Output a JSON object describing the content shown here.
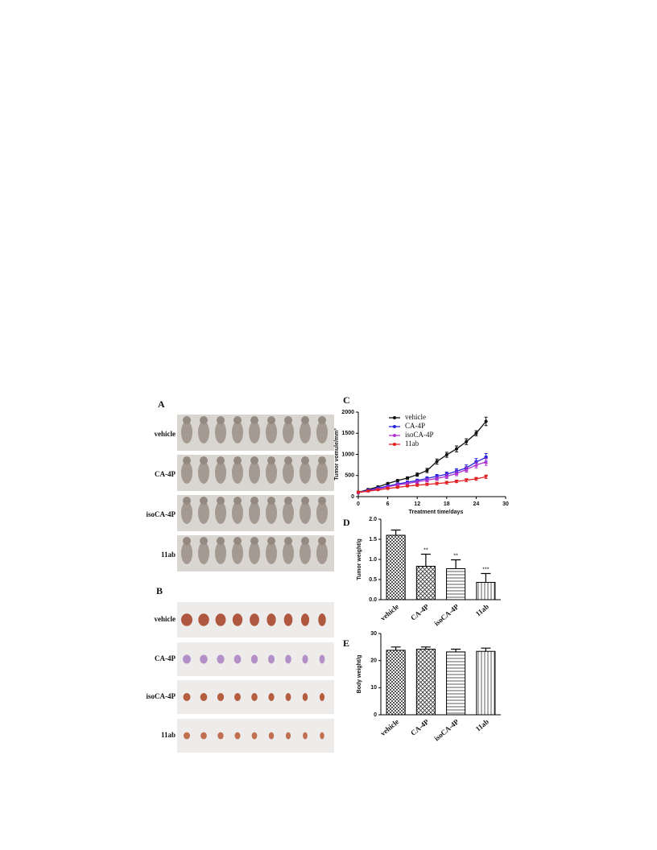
{
  "panels": {
    "A": {
      "label": "A",
      "rows": [
        "vehicle",
        "CA-4P",
        "isoCA-4P",
        "11ab"
      ]
    },
    "B": {
      "label": "B",
      "rows": [
        "vehicle",
        "CA-4P",
        "isoCA-4P",
        "11ab"
      ]
    }
  },
  "chart_data": [
    {
      "type": "line",
      "label": "C",
      "xlabel": "Treatment time/days",
      "ylabel": "Tumor vomule/mm³",
      "x": [
        0,
        2,
        4,
        6,
        8,
        10,
        12,
        14,
        16,
        18,
        20,
        22,
        24,
        26
      ],
      "xlim": [
        0,
        30
      ],
      "xticks": [
        0,
        6,
        12,
        18,
        24,
        30
      ],
      "ylim": [
        0,
        2000
      ],
      "yticks": [
        0,
        500,
        1000,
        1500,
        2000
      ],
      "series": [
        {
          "name": "vehicle",
          "color": "#111111",
          "marker": "circle",
          "values": [
            100,
            170,
            230,
            310,
            380,
            440,
            520,
            620,
            830,
            990,
            1130,
            1300,
            1500,
            1780
          ],
          "errors": [
            20,
            20,
            20,
            25,
            25,
            30,
            40,
            50,
            60,
            60,
            70,
            70,
            60,
            100
          ]
        },
        {
          "name": "CA-4P",
          "color": "#2222dd",
          "marker": "square",
          "values": [
            100,
            150,
            200,
            250,
            300,
            340,
            380,
            430,
            480,
            530,
            600,
            680,
            820,
            930
          ],
          "errors": [
            15,
            15,
            20,
            20,
            25,
            30,
            35,
            40,
            45,
            50,
            60,
            70,
            80,
            90
          ]
        },
        {
          "name": "isoCA-4P",
          "color": "#b030d0",
          "marker": "triangle",
          "values": [
            100,
            140,
            180,
            230,
            280,
            310,
            350,
            390,
            430,
            480,
            550,
            640,
            750,
            820
          ],
          "errors": [
            15,
            15,
            20,
            20,
            25,
            30,
            35,
            40,
            45,
            50,
            55,
            60,
            70,
            80
          ]
        },
        {
          "name": "11ab",
          "color": "#e02020",
          "marker": "down-triangle",
          "values": [
            100,
            130,
            160,
            190,
            220,
            250,
            270,
            290,
            310,
            330,
            360,
            390,
            420,
            470
          ],
          "errors": [
            10,
            10,
            15,
            15,
            20,
            20,
            25,
            25,
            30,
            30,
            30,
            35,
            35,
            40
          ]
        }
      ]
    },
    {
      "type": "bar",
      "label": "D",
      "ylabel": "Tumor weight/g",
      "categories": [
        "vehicle",
        "CA-4P",
        "isoCA-4P",
        "11ab"
      ],
      "values": [
        1.6,
        0.83,
        0.77,
        0.43
      ],
      "errors": [
        0.13,
        0.3,
        0.22,
        0.22
      ],
      "significance": [
        null,
        "**",
        "**",
        "***"
      ],
      "ylim": [
        0,
        2.0
      ],
      "yticks": [
        {
          "value": 0,
          "label": "0.0"
        },
        {
          "value": 0.5,
          "label": "0.5"
        },
        {
          "value": 1,
          "label": "1.0"
        },
        {
          "value": 1.5,
          "label": "1.5"
        },
        {
          "value": 2,
          "label": "2.0"
        }
      ]
    },
    {
      "type": "bar",
      "label": "E",
      "ylabel": "Body weight/g",
      "categories": [
        "vehicle",
        "CA-4P",
        "isoCA-4P",
        "11ab"
      ],
      "values": [
        23.8,
        24.2,
        23.2,
        23.4
      ],
      "errors": [
        1.2,
        0.8,
        1.0,
        1.2
      ],
      "ylim": [
        0,
        30
      ],
      "yticks": [
        0,
        10,
        20,
        30
      ]
    }
  ]
}
